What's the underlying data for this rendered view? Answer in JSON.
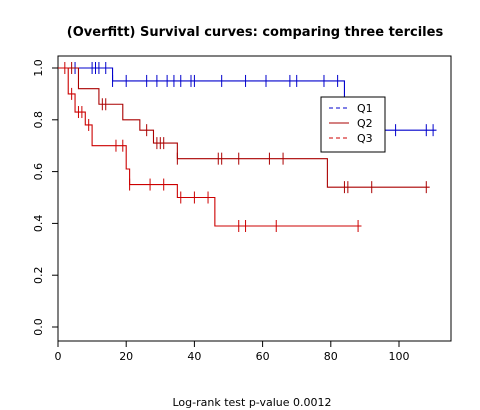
{
  "chart_data": {
    "type": "line",
    "title": "(Overfitt) Survival curves: comparing three terciles",
    "xlabel": "",
    "ylabel": "",
    "xlim": [
      0,
      115
    ],
    "ylim": [
      0,
      1.0
    ],
    "x_ticks": [
      0,
      20,
      40,
      60,
      80,
      100
    ],
    "y_ticks": [
      0.0,
      0.2,
      0.4,
      0.6,
      0.8,
      1.0
    ],
    "x_tick_labels": [
      "0",
      "20",
      "40",
      "60",
      "80",
      "100"
    ],
    "y_tick_labels": [
      "0.0",
      "0.2",
      "0.4",
      "0.6",
      "0.8",
      "1.0"
    ],
    "grid": false,
    "legend_position": "top-right",
    "footnote": "Log-rank test p-value   0.0012",
    "series": [
      {
        "name": "Q1",
        "color": "#0000cc",
        "legend_line": "dashed",
        "steps": [
          [
            0,
            1.0
          ],
          [
            16,
            0.95
          ],
          [
            84,
            0.76
          ],
          [
            111,
            0.76
          ]
        ],
        "censored": [
          5,
          10,
          11,
          12,
          14,
          16,
          20,
          26,
          29,
          32,
          34,
          36,
          39,
          40,
          48,
          55,
          61,
          68,
          70,
          78,
          82,
          99,
          108,
          110
        ]
      },
      {
        "name": "Q2",
        "color": "#aa0000",
        "legend_line": "solid",
        "steps": [
          [
            0,
            1.0
          ],
          [
            6,
            0.92
          ],
          [
            12,
            0.86
          ],
          [
            19,
            0.8
          ],
          [
            24,
            0.76
          ],
          [
            28,
            0.71
          ],
          [
            35,
            0.65
          ],
          [
            79,
            0.54
          ],
          [
            109,
            0.54
          ]
        ],
        "censored": [
          4,
          13,
          14,
          26,
          29,
          30,
          31,
          35,
          47,
          48,
          53,
          62,
          66,
          84,
          85,
          92,
          108
        ]
      },
      {
        "name": "Q3",
        "color": "#cc0000",
        "legend_line": "dashed",
        "steps": [
          [
            0,
            1.0
          ],
          [
            3,
            0.9
          ],
          [
            5,
            0.83
          ],
          [
            8,
            0.78
          ],
          [
            10,
            0.7
          ],
          [
            20,
            0.61
          ],
          [
            21,
            0.55
          ],
          [
            35,
            0.5
          ],
          [
            46,
            0.39
          ],
          [
            89,
            0.39
          ]
        ],
        "censored": [
          2,
          4,
          6,
          7,
          9,
          17,
          19,
          21,
          27,
          31,
          36,
          40,
          44,
          53,
          55,
          64,
          88
        ]
      }
    ]
  }
}
